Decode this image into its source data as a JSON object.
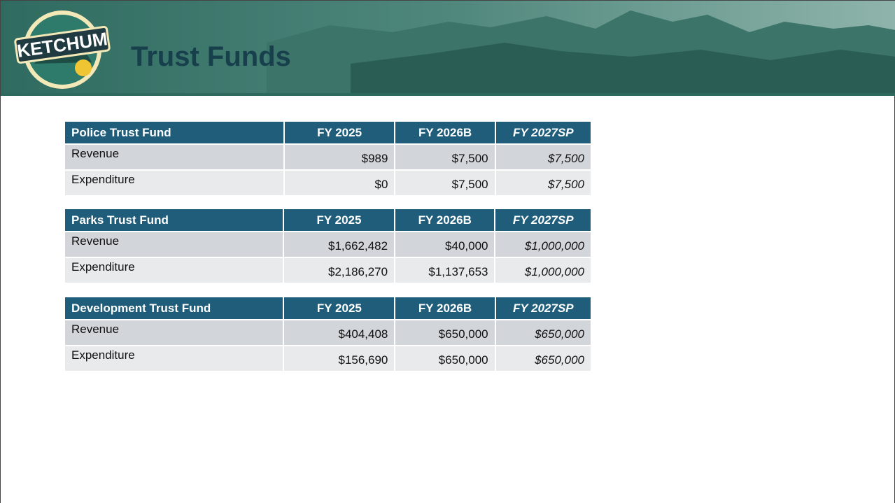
{
  "header": {
    "title": "Trust Funds",
    "logo": "KETCHUM"
  },
  "tables": [
    {
      "columns": [
        "Police Trust Fund",
        "FY 2025",
        "FY 2026B",
        "FY 2027SP"
      ],
      "rows": [
        [
          "Revenue",
          "$989",
          "$7,500",
          "$7,500"
        ],
        [
          "Expenditure",
          "$0",
          "$7,500",
          "$7,500"
        ]
      ]
    },
    {
      "columns": [
        "Parks Trust Fund",
        "FY 2025",
        "FY 2026B",
        "FY 2027SP"
      ],
      "rows": [
        [
          "Revenue",
          "$1,662,482",
          "$40,000",
          "$1,000,000"
        ],
        [
          "Expenditure",
          "$2,186,270",
          "$1,137,653",
          "$1,000,000"
        ]
      ]
    },
    {
      "columns": [
        "Development Trust Fund",
        "FY 2025",
        "FY 2026B",
        "FY 2027SP"
      ],
      "rows": [
        [
          "Revenue",
          "$404,408",
          "$650,000",
          "$650,000"
        ],
        [
          "Expenditure",
          "$156,690",
          "$650,000",
          "$650,000"
        ]
      ]
    }
  ]
}
